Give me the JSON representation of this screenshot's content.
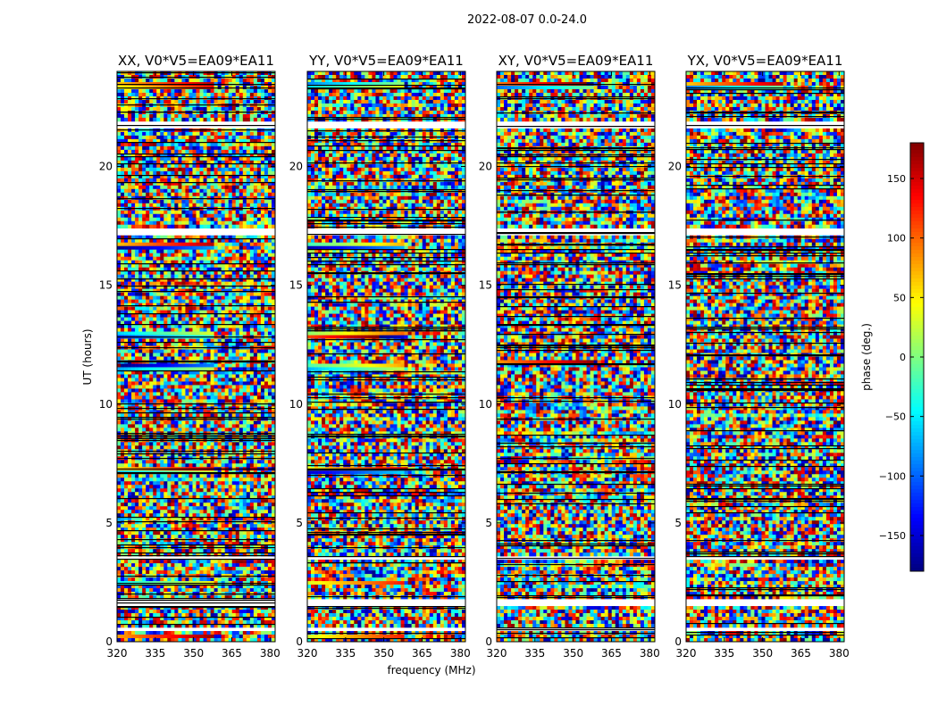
{
  "chart_data": {
    "type": "heatmap",
    "title": "2022-08-07 0.0-24.0",
    "xlabel": "frequency (MHz)",
    "ylabel": "UT (hours)",
    "colorbar_label": "phase (deg.)",
    "colormap": "jet",
    "xlim": [
      320,
      382
    ],
    "ylim": [
      0,
      24
    ],
    "x_ticks": [
      320,
      335,
      350,
      365,
      380
    ],
    "x_tick_labels": [
      "320",
      "335",
      "350",
      "365",
      "380"
    ],
    "y_ticks": [
      0,
      5,
      10,
      15,
      20
    ],
    "y_tick_labels": [
      "0",
      "5",
      "10",
      "15",
      "20"
    ],
    "colorbar_range": [
      -180,
      180
    ],
    "colorbar_ticks": [
      150,
      100,
      50,
      0,
      -50,
      -100,
      -150
    ],
    "colorbar_tick_labels": [
      "150",
      "100",
      "50",
      "0",
      "−50",
      "−100",
      "−150"
    ],
    "gap_bands_ut": [
      [
        21.6,
        21.9
      ],
      [
        17.1,
        17.4
      ],
      [
        3.45,
        3.6
      ],
      [
        1.55,
        1.75
      ],
      [
        0.45,
        0.6
      ]
    ],
    "panels": [
      {
        "title": "XX, V0*V5=EA09*EA11",
        "coherent_bands": [
          [
            23.2,
            23.5
          ],
          [
            16.5,
            16.8
          ],
          [
            12.8,
            13.1
          ],
          [
            11.4,
            11.7
          ],
          [
            7.1,
            7.3
          ],
          [
            2.35,
            2.55
          ],
          [
            0.15,
            0.35
          ]
        ]
      },
      {
        "title": "YY, V0*V5=EA09*EA11",
        "coherent_bands": [
          [
            23.2,
            23.5
          ],
          [
            16.5,
            16.8
          ],
          [
            12.8,
            13.1
          ],
          [
            11.4,
            11.7
          ],
          [
            7.1,
            7.3
          ],
          [
            2.35,
            2.55
          ],
          [
            0.15,
            0.35
          ]
        ]
      },
      {
        "title": "XY, V0*V5=EA09*EA11",
        "coherent_bands": [
          [
            23.2,
            23.5
          ],
          [
            11.7,
            11.9
          ]
        ]
      },
      {
        "title": "YX, V0*V5=EA09*EA11",
        "coherent_bands": [
          [
            23.2,
            23.5
          ]
        ]
      }
    ]
  }
}
